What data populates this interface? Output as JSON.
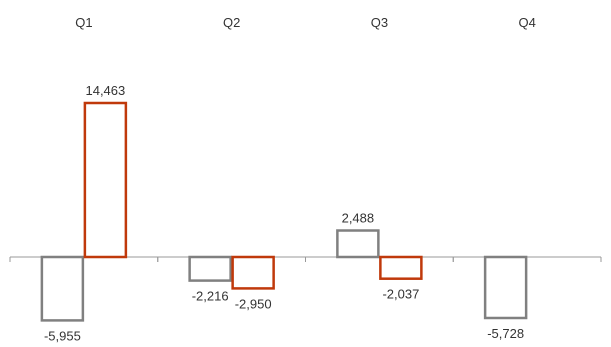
{
  "chart_data": {
    "type": "bar",
    "categories": [
      "Q1",
      "Q2",
      "Q3",
      "Q4"
    ],
    "series": [
      {
        "values": [
          -5955,
          -2216,
          2488,
          -5728
        ],
        "labels": [
          "-5,955",
          "-2,216",
          "2,488",
          "-5,728"
        ],
        "color": "#808080"
      },
      {
        "values": [
          14463,
          -2950,
          -2037,
          null
        ],
        "labels": [
          "14,463",
          "-2,950",
          "-2,037",
          ""
        ],
        "color": "#c0390b"
      }
    ],
    "title": "",
    "xlabel": "",
    "ylabel": "",
    "ylim": [
      -7000,
      16000
    ],
    "grid": false,
    "legend": "none",
    "category_labels_position": "top",
    "bar_style": "outline"
  }
}
